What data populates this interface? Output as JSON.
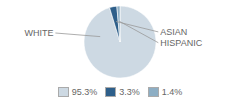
{
  "chart_data": {
    "type": "pie",
    "categories": [
      "WHITE",
      "ASIAN",
      "HISPANIC"
    ],
    "values": [
      95.3,
      3.3,
      1.4
    ],
    "value_labels": [
      "95.3%",
      "3.3%",
      "1.4%"
    ],
    "colors": [
      "#cdd9e3",
      "#2e5f8a",
      "#8daec4"
    ],
    "legend": "bottom"
  }
}
